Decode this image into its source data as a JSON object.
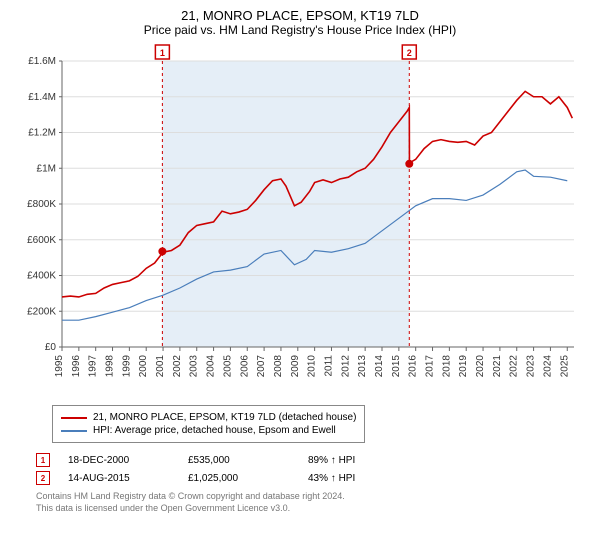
{
  "title": "21, MONRO PLACE, EPSOM, KT19 7LD",
  "subtitle": "Price paid vs. HM Land Registry's House Price Index (HPI)",
  "chart": {
    "type": "line",
    "x_years": [
      1995,
      1996,
      1997,
      1998,
      1999,
      2000,
      2001,
      2002,
      2003,
      2004,
      2005,
      2006,
      2007,
      2008,
      2009,
      2010,
      2011,
      2012,
      2013,
      2014,
      2015,
      2016,
      2017,
      2018,
      2019,
      2020,
      2021,
      2022,
      2023,
      2024,
      2025
    ],
    "ylim": [
      0,
      1600000
    ],
    "ytick_step": 200000,
    "ytick_labels": [
      "£0",
      "£200K",
      "£400K",
      "£600K",
      "£800K",
      "£1M",
      "£1.2M",
      "£1.4M",
      "£1.6M"
    ],
    "background": "#ffffff",
    "grid_color": "#dddddd",
    "axis_color": "#666666",
    "shade_color": "#e5eef7",
    "marker_line_color": "#cc0000",
    "series": [
      {
        "name": "price_paid",
        "label": "21, MONRO PLACE, EPSOM, KT19 7LD (detached house)",
        "color": "#cc0000",
        "width": 1.6,
        "data": [
          [
            1995.0,
            280000
          ],
          [
            1995.5,
            285000
          ],
          [
            1996.0,
            280000
          ],
          [
            1996.5,
            295000
          ],
          [
            1997.0,
            300000
          ],
          [
            1997.5,
            330000
          ],
          [
            1998.0,
            350000
          ],
          [
            1998.5,
            360000
          ],
          [
            1999.0,
            370000
          ],
          [
            1999.5,
            395000
          ],
          [
            2000.0,
            440000
          ],
          [
            2000.5,
            470000
          ],
          [
            2001.0,
            530000
          ],
          [
            2001.5,
            540000
          ],
          [
            2002.0,
            570000
          ],
          [
            2002.5,
            640000
          ],
          [
            2003.0,
            680000
          ],
          [
            2003.5,
            690000
          ],
          [
            2004.0,
            700000
          ],
          [
            2004.5,
            760000
          ],
          [
            2005.0,
            745000
          ],
          [
            2005.5,
            755000
          ],
          [
            2006.0,
            770000
          ],
          [
            2006.5,
            820000
          ],
          [
            2007.0,
            880000
          ],
          [
            2007.5,
            930000
          ],
          [
            2008.0,
            940000
          ],
          [
            2008.3,
            900000
          ],
          [
            2008.8,
            790000
          ],
          [
            2009.2,
            810000
          ],
          [
            2009.7,
            870000
          ],
          [
            2010.0,
            920000
          ],
          [
            2010.5,
            935000
          ],
          [
            2011.0,
            920000
          ],
          [
            2011.5,
            940000
          ],
          [
            2012.0,
            950000
          ],
          [
            2012.5,
            980000
          ],
          [
            2013.0,
            1000000
          ],
          [
            2013.5,
            1050000
          ],
          [
            2014.0,
            1120000
          ],
          [
            2014.5,
            1200000
          ],
          [
            2015.0,
            1260000
          ],
          [
            2015.5,
            1320000
          ],
          [
            2015.62,
            1340000
          ],
          [
            2015.63,
            1030000
          ],
          [
            2016.0,
            1050000
          ],
          [
            2016.5,
            1110000
          ],
          [
            2017.0,
            1150000
          ],
          [
            2017.5,
            1160000
          ],
          [
            2018.0,
            1150000
          ],
          [
            2018.5,
            1145000
          ],
          [
            2019.0,
            1150000
          ],
          [
            2019.5,
            1130000
          ],
          [
            2020.0,
            1180000
          ],
          [
            2020.5,
            1200000
          ],
          [
            2021.0,
            1260000
          ],
          [
            2021.5,
            1320000
          ],
          [
            2022.0,
            1380000
          ],
          [
            2022.5,
            1430000
          ],
          [
            2023.0,
            1400000
          ],
          [
            2023.5,
            1400000
          ],
          [
            2024.0,
            1360000
          ],
          [
            2024.5,
            1400000
          ],
          [
            2025.0,
            1340000
          ],
          [
            2025.3,
            1280000
          ]
        ]
      },
      {
        "name": "hpi",
        "label": "HPI: Average price, detached house, Epsom and Ewell",
        "color": "#4a7ebb",
        "width": 1.2,
        "data": [
          [
            1995.0,
            150000
          ],
          [
            1996.0,
            150000
          ],
          [
            1997.0,
            170000
          ],
          [
            1998.0,
            195000
          ],
          [
            1999.0,
            220000
          ],
          [
            2000.0,
            260000
          ],
          [
            2001.0,
            290000
          ],
          [
            2002.0,
            330000
          ],
          [
            2003.0,
            380000
          ],
          [
            2004.0,
            420000
          ],
          [
            2005.0,
            430000
          ],
          [
            2006.0,
            450000
          ],
          [
            2007.0,
            520000
          ],
          [
            2008.0,
            540000
          ],
          [
            2008.8,
            460000
          ],
          [
            2009.5,
            490000
          ],
          [
            2010.0,
            540000
          ],
          [
            2011.0,
            530000
          ],
          [
            2012.0,
            550000
          ],
          [
            2013.0,
            580000
          ],
          [
            2014.0,
            650000
          ],
          [
            2015.0,
            720000
          ],
          [
            2016.0,
            790000
          ],
          [
            2017.0,
            830000
          ],
          [
            2018.0,
            830000
          ],
          [
            2019.0,
            820000
          ],
          [
            2020.0,
            850000
          ],
          [
            2021.0,
            910000
          ],
          [
            2022.0,
            980000
          ],
          [
            2022.5,
            990000
          ],
          [
            2023.0,
            955000
          ],
          [
            2024.0,
            950000
          ],
          [
            2025.0,
            930000
          ]
        ]
      }
    ],
    "sale_markers": [
      {
        "num": "1",
        "x": 2000.96,
        "y": 535000
      },
      {
        "num": "2",
        "x": 2015.62,
        "y": 1025000
      }
    ]
  },
  "legend": [
    {
      "color": "#cc0000",
      "label": "21, MONRO PLACE, EPSOM, KT19 7LD (detached house)"
    },
    {
      "color": "#4a7ebb",
      "label": "HPI: Average price, detached house, Epsom and Ewell"
    }
  ],
  "sales": [
    {
      "num": "1",
      "date": "18-DEC-2000",
      "price": "£535,000",
      "hpi": "89% ↑ HPI"
    },
    {
      "num": "2",
      "date": "14-AUG-2015",
      "price": "£1,025,000",
      "hpi": "43% ↑ HPI"
    }
  ],
  "footer": {
    "line1": "Contains HM Land Registry data © Crown copyright and database right 2024.",
    "line2": "This data is licensed under the Open Government Licence v3.0."
  }
}
